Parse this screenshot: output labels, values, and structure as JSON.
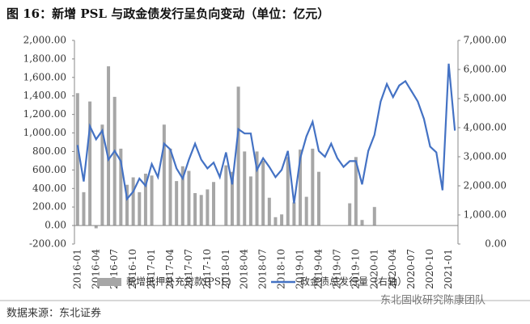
{
  "chart_data": {
    "type": "bar-line",
    "title": "图 16：新增 PSL 与政金债发行呈负向变动（单位：亿元）",
    "source": "数据来源：东北证券",
    "watermark": "东北固收研究陈康团队",
    "categories": [
      "2016-01",
      null,
      null,
      "2016-04",
      null,
      null,
      "2016-07",
      null,
      null,
      "2016-10",
      null,
      null,
      "2017-01",
      null,
      null,
      "2017-04",
      null,
      null,
      "2017-07",
      null,
      null,
      "2017-10",
      null,
      null,
      "2018-01",
      null,
      null,
      "2018-04",
      null,
      null,
      "2018-07",
      null,
      null,
      "2018-10",
      null,
      null,
      "2019-01",
      null,
      null,
      "2019-04",
      null,
      null,
      "2019-07",
      null,
      null,
      "2019-10",
      null,
      null,
      "2020-01",
      null,
      null,
      "2020-04",
      null,
      null,
      "2020-07",
      null,
      null,
      "2020-10",
      null,
      null,
      "2021-01",
      null
    ],
    "series": [
      {
        "name": "新增抵押补充贷款(PSL)",
        "color": "#a6a6a6",
        "axis": "y",
        "values": [
          1430,
          360,
          1340,
          -30,
          1090,
          1720,
          1390,
          830,
          440,
          520,
          360,
          560,
          540,
          0,
          1090,
          830,
          480,
          640,
          590,
          350,
          330,
          390,
          470,
          0,
          650,
          580,
          1500,
          800,
          530,
          800,
          700,
          300,
          90,
          120,
          740,
          250,
          820,
          310,
          830,
          580,
          0,
          0,
          0,
          0,
          240,
          740,
          60,
          0,
          200,
          0,
          0,
          0,
          0,
          0,
          0,
          0,
          0,
          0,
          0,
          0,
          0,
          0
        ]
      },
      {
        "name": "政金债总发行量（右轴）",
        "color": "#4472c4",
        "axis": "y2",
        "values": [
          3400,
          2150,
          4050,
          3600,
          3900,
          2900,
          3200,
          2850,
          1550,
          1800,
          2250,
          2000,
          2750,
          2300,
          3450,
          3250,
          2600,
          2250,
          2900,
          3450,
          2900,
          2600,
          2800,
          2300,
          3150,
          2050,
          3950,
          3800,
          3800,
          2550,
          2950,
          2650,
          2300,
          2550,
          3200,
          1400,
          2950,
          3700,
          4200,
          3200,
          3000,
          3450,
          2950,
          2650,
          2850,
          2850,
          2050,
          3200,
          3750,
          4900,
          5500,
          5050,
          5450,
          5600,
          5250,
          4900,
          4300,
          3350,
          3150,
          1850,
          6200,
          3900
        ]
      }
    ],
    "ylim": [
      -200,
      2000
    ],
    "yticks": [
      {
        "value": 2000,
        "label": "2,000.00"
      },
      {
        "value": 1800,
        "label": "1,800.00"
      },
      {
        "value": 1600,
        "label": "1,600.00"
      },
      {
        "value": 1400,
        "label": "1,400.00"
      },
      {
        "value": 1200,
        "label": "1,200.00"
      },
      {
        "value": 1000,
        "label": "1,000.00"
      },
      {
        "value": 800,
        "label": "800.00"
      },
      {
        "value": 600,
        "label": "600.00"
      },
      {
        "value": 400,
        "label": "400.00"
      },
      {
        "value": 200,
        "label": "200.00"
      },
      {
        "value": 0,
        "label": "0.00"
      },
      {
        "value": -200,
        "label": "-200.00"
      }
    ],
    "y2lim": [
      0,
      7000
    ],
    "y2ticks": [
      {
        "value": 7000,
        "label": "7,000.00"
      },
      {
        "value": 6000,
        "label": "6,000.00"
      },
      {
        "value": 5000,
        "label": "5,000.00"
      },
      {
        "value": 4000,
        "label": "4,000.00"
      },
      {
        "value": 3000,
        "label": "3,000.00"
      },
      {
        "value": 2000,
        "label": "2,000.00"
      },
      {
        "value": 1000,
        "label": "1,000.00"
      },
      {
        "value": 0,
        "label": "0.00"
      }
    ]
  }
}
